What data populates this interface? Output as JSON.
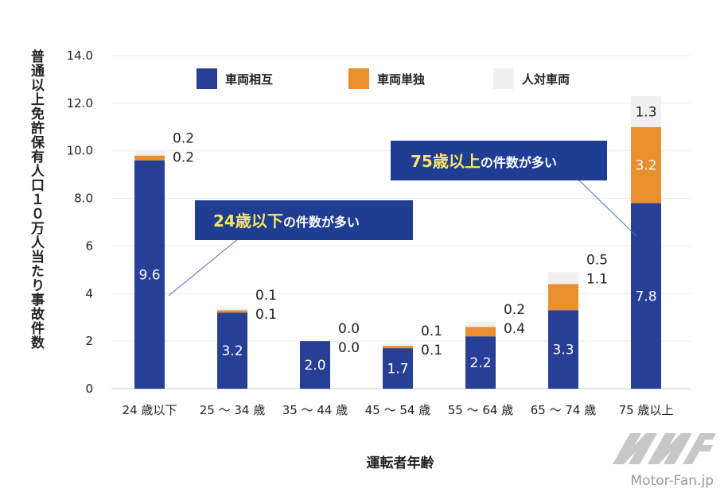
{
  "chart_data": {
    "type": "bar",
    "stacked": true,
    "categories": [
      "24 歳以下",
      "25 ～ 34 歳",
      "35 ～ 44 歳",
      "45 ～ 54 歳",
      "55 ～ 64 歳",
      "65 ～ 74 歳",
      "75 歳以上"
    ],
    "series": [
      {
        "name": "車両相互",
        "color": "#283f96",
        "values": [
          9.6,
          3.2,
          2.0,
          1.7,
          2.2,
          3.3,
          7.8
        ]
      },
      {
        "name": "車両単独",
        "color": "#ea8f2d",
        "values": [
          0.2,
          0.1,
          0.0,
          0.1,
          0.4,
          1.1,
          3.2
        ]
      },
      {
        "name": "人対車両",
        "color": "#f0f0f0",
        "values": [
          0.2,
          0.1,
          0.0,
          0.1,
          0.2,
          0.5,
          1.3
        ]
      }
    ],
    "ylabel": "普通以上免許保有人口１０万人当たり事故件数",
    "xlabel": "運転者年齢",
    "ylim": [
      0,
      14
    ],
    "yticks": [
      "0",
      "2",
      "4",
      "6",
      "8.0",
      "10.0",
      "12.0",
      "14.0"
    ],
    "grid": true,
    "legend_position": "top",
    "annotations": [
      {
        "highlight": "24歳以下",
        "text": "の件数が多い",
        "target_category": "24 歳以下"
      },
      {
        "highlight": "75歳以上",
        "text": "の件数が多い",
        "target_category": "75 歳以上"
      }
    ]
  },
  "watermark": "Motor-Fan.jp"
}
